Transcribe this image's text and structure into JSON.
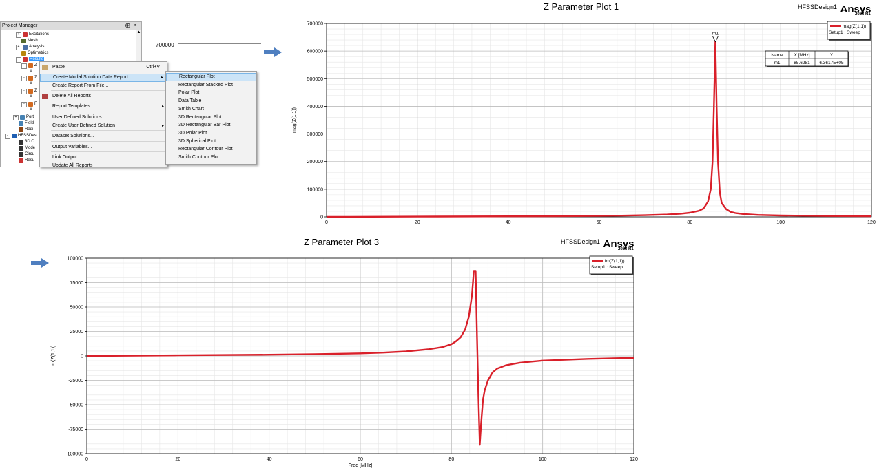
{
  "project_manager": {
    "title": "Project Manager",
    "pin": "⨁",
    "close": "✕",
    "tree": [
      {
        "label": "Excitations",
        "x": 30,
        "y": 14,
        "exp": "+",
        "color": "#cc3333"
      },
      {
        "label": "Mesh",
        "x": 38,
        "y": 23,
        "exp": "",
        "color": "#556b2f"
      },
      {
        "label": "Analysis",
        "x": 30,
        "y": 32,
        "exp": "+",
        "color": "#4a6fa5"
      },
      {
        "label": "Optimetrics",
        "x": 38,
        "y": 41,
        "exp": "",
        "color": "#b8860b"
      },
      {
        "label": "Results",
        "x": 30,
        "y": 50,
        "exp": "-",
        "color": "#cc3333",
        "selected": true
      },
      {
        "label": "Z",
        "x": 38,
        "y": 59,
        "exp": "-",
        "color": "#d2691e"
      },
      {
        "label": "A",
        "x": 50,
        "y": 68,
        "exp": "",
        "color": ""
      },
      {
        "label": "Z",
        "x": 38,
        "y": 77,
        "exp": "-",
        "color": "#d2691e"
      },
      {
        "label": "A",
        "x": 50,
        "y": 86,
        "exp": "",
        "color": ""
      },
      {
        "label": "Z",
        "x": 38,
        "y": 96,
        "exp": "-",
        "color": "#d2691e"
      },
      {
        "label": "A",
        "x": 50,
        "y": 105,
        "exp": "",
        "color": ""
      },
      {
        "label": "F",
        "x": 38,
        "y": 115,
        "exp": "-",
        "color": "#d2691e"
      },
      {
        "label": "A",
        "x": 50,
        "y": 124,
        "exp": "",
        "color": ""
      },
      {
        "label": "Port",
        "x": 26,
        "y": 134,
        "exp": "+",
        "color": "#4682b4"
      },
      {
        "label": "Field",
        "x": 34,
        "y": 143,
        "exp": "",
        "color": "#4682b4"
      },
      {
        "label": "Radi",
        "x": 34,
        "y": 152,
        "exp": "",
        "color": "#8b4513"
      },
      {
        "label": "HFSSDesi",
        "x": 14,
        "y": 161,
        "exp": "-",
        "color": "#1e5fb3"
      },
      {
        "label": "3D C",
        "x": 34,
        "y": 170,
        "exp": "",
        "color": "#333"
      },
      {
        "label": "Mode",
        "x": 34,
        "y": 179,
        "exp": "",
        "color": "#333"
      },
      {
        "label": "Circu",
        "x": 34,
        "y": 188,
        "exp": "",
        "color": "#333"
      },
      {
        "label": "Resu",
        "x": 34,
        "y": 197,
        "exp": "",
        "color": "#cc3333"
      }
    ]
  },
  "background_plot": {
    "ytick": "700000"
  },
  "context_menu": {
    "items": [
      {
        "label": "Paste",
        "shortcut": "Ctrl+V",
        "y": 2,
        "icon": "paste-icon"
      },
      {
        "label": "Create Modal Solution Data Report",
        "submenu": true,
        "y": 17,
        "highlight": true
      },
      {
        "label": "Create Report From File...",
        "y": 29
      },
      {
        "label": "Delete All Reports",
        "y": 44,
        "icon": "delete-reports-icon"
      },
      {
        "label": "Report Templates",
        "submenu": true,
        "y": 59
      },
      {
        "label": "User Defined Solutions...",
        "y": 75
      },
      {
        "label": "Create User Defined Solution",
        "submenu": true,
        "y": 87
      },
      {
        "label": "Dataset Solutions...",
        "y": 102
      },
      {
        "label": "Output Variables...",
        "y": 118
      },
      {
        "label": "Link Output...",
        "y": 133
      },
      {
        "label": "Update All Reports",
        "y": 145
      }
    ],
    "separators": [
      14,
      41,
      56,
      72,
      99,
      115,
      130
    ]
  },
  "submenu": {
    "items": [
      "Rectangular Plot",
      "Rectangular Stacked Plot",
      "Polar Plot",
      "Data Table",
      "Smith Chart",
      "3D Rectangular Plot",
      "3D Rectangular Bar Plot",
      "3D Polar Plot",
      "3D Spherical Plot",
      "Rectangular Contour Plot",
      "Smith Contour Plot"
    ]
  },
  "chart_data": [
    {
      "type": "line",
      "title": "Z Parameter Plot 1",
      "design": "HFSSDesign1",
      "brand": "Ansys",
      "version": "2023 R1",
      "xlabel": "",
      "ylabel": "mag(Z(1,1))",
      "xlim": [
        0,
        120
      ],
      "ylim": [
        0,
        700000
      ],
      "xticks": [
        0,
        20,
        40,
        60,
        80,
        100,
        120
      ],
      "yticks": [
        0,
        100000,
        200000,
        300000,
        400000,
        500000,
        600000,
        700000
      ],
      "grid": true,
      "color": "#d9202a",
      "legend": {
        "position": "top-right",
        "name": "mag(Z(1,1))",
        "setup": "Setup1 : Sweep"
      },
      "marker": {
        "name": "m1",
        "x": 85.6281,
        "y": 636170
      },
      "marker_table": {
        "headers": [
          "Name",
          "X [MHz]",
          "Y"
        ],
        "row": [
          "m1",
          "85.6281",
          "6.3617E+05"
        ]
      },
      "series": [
        {
          "name": "mag(Z(1,1))",
          "x": [
            0,
            20,
            40,
            50,
            60,
            65,
            70,
            75,
            78,
            80,
            82,
            83,
            84,
            84.6,
            85,
            85.3,
            85.6281,
            85.9,
            86.2,
            86.6,
            87,
            88,
            89,
            90,
            92,
            95,
            100,
            110,
            120
          ],
          "y": [
            0,
            1000,
            1900,
            2600,
            3700,
            4600,
            6000,
            8500,
            11500,
            15000,
            22000,
            30000,
            55000,
            100000,
            200000,
            400000,
            636170,
            400000,
            200000,
            90000,
            50000,
            28000,
            18000,
            14000,
            10000,
            7000,
            5000,
            3300,
            2500
          ]
        }
      ]
    },
    {
      "type": "line",
      "title": "Z Parameter Plot 3",
      "design": "HFSSDesign1",
      "brand": "Ansys",
      "version": "2023 R1",
      "xlabel": "Freq [MHz]",
      "ylabel": "im(Z(1,1))",
      "xlim": [
        0,
        120
      ],
      "ylim": [
        -100000,
        100000
      ],
      "xticks": [
        0,
        20,
        40,
        60,
        80,
        100,
        120
      ],
      "yticks": [
        -100000,
        -75000,
        -50000,
        -25000,
        0,
        25000,
        50000,
        75000,
        100000
      ],
      "grid": true,
      "color": "#d9202a",
      "legend": {
        "position": "top-right",
        "name": "im(Z(1,1))",
        "setup": "Setup1 : Sweep"
      },
      "series": [
        {
          "name": "im(Z(1,1))",
          "x": [
            0,
            20,
            40,
            50,
            60,
            65,
            70,
            75,
            78,
            80,
            81,
            82,
            83,
            83.8,
            84.5,
            84.9,
            85.3,
            85.6,
            85.9,
            86.2,
            86.5,
            86.9,
            87.3,
            88,
            89,
            90,
            92,
            95,
            100,
            110,
            120
          ],
          "y": [
            0,
            600,
            1300,
            1800,
            2600,
            3400,
            4600,
            6800,
            9000,
            12000,
            15000,
            19000,
            27000,
            40000,
            62000,
            87000,
            87000,
            20000,
            -40000,
            -91000,
            -70000,
            -45000,
            -35000,
            -25000,
            -17000,
            -13000,
            -9500,
            -7000,
            -4800,
            -3000,
            -2000
          ]
        }
      ]
    }
  ]
}
